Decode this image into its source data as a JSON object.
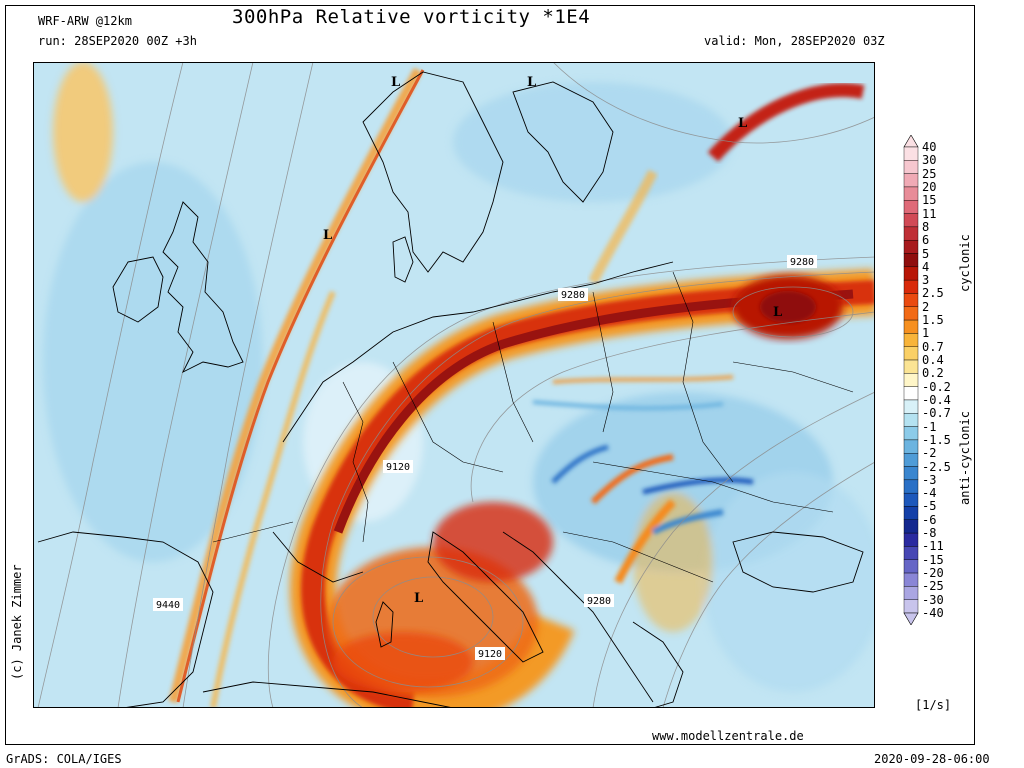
{
  "header": {
    "model": "WRF-ARW @12km",
    "run": "run: 28SEP2020 00Z +3h",
    "title": "300hPa Relative vorticity *1E4",
    "valid": "valid: Mon, 28SEP2020 03Z"
  },
  "footer": {
    "website": "www.modellzentrale.de",
    "software": "GrADS: COLA/IGES",
    "timestamp": "2020-09-28-06:00",
    "units": "[1/s]",
    "credit": "(c) Janek Zimmer"
  },
  "legend": {
    "cyclonic_label": "cyclonic",
    "anticyclonic_label": "anti-cyclonic",
    "levels": [
      "40",
      "30",
      "25",
      "20",
      "15",
      "11",
      "8",
      "6",
      "5",
      "4",
      "3",
      "2.5",
      "2",
      "1.5",
      "1",
      "0.7",
      "0.4",
      "0.2",
      "-0.2",
      "-0.4",
      "-0.7",
      "-1",
      "-1.5",
      "-2",
      "-2.5",
      "-3",
      "-4",
      "-5",
      "-6",
      "-8",
      "-11",
      "-15",
      "-20",
      "-25",
      "-30",
      "-40"
    ],
    "colors": [
      "#fbe0e4",
      "#f6c7cf",
      "#f0aab5",
      "#e88c98",
      "#df6a78",
      "#d14a56",
      "#bf2f36",
      "#a81b1e",
      "#8f0e0e",
      "#b81606",
      "#d92a0a",
      "#ea4a10",
      "#f26a16",
      "#f69020",
      "#f8b43a",
      "#fad066",
      "#fbe494",
      "#fff6c8",
      "#ffffff",
      "#d8f1f8",
      "#b4e2f1",
      "#8ccbe9",
      "#6cb4e0",
      "#4f9cd7",
      "#3a86cf",
      "#2a70c6",
      "#1d58bb",
      "#1440a8",
      "#14288f",
      "#2a2aa0",
      "#4747b4",
      "#6666c6",
      "#8a86d6",
      "#aaa6e2",
      "#c8c4ec"
    ]
  },
  "map": {
    "low_markers": [
      {
        "name": "low-north-atlantic",
        "label": "L"
      },
      {
        "name": "low-scandinavia",
        "label": "L"
      },
      {
        "name": "low-atlantic-trough",
        "label": "L"
      },
      {
        "name": "low-northeast",
        "label": "L"
      },
      {
        "name": "low-east",
        "label": "L"
      },
      {
        "name": "low-mediterranean",
        "label": "L"
      }
    ],
    "contour_labels": [
      {
        "name": "contour-9280-north",
        "label": "9280"
      },
      {
        "name": "contour-9280-east",
        "label": "9280"
      },
      {
        "name": "contour-9120-alps",
        "label": "9120"
      },
      {
        "name": "contour-9280-balkan",
        "label": "9280"
      },
      {
        "name": "contour-9120-south",
        "label": "9120"
      },
      {
        "name": "contour-9440-west",
        "label": "9440"
      }
    ]
  }
}
